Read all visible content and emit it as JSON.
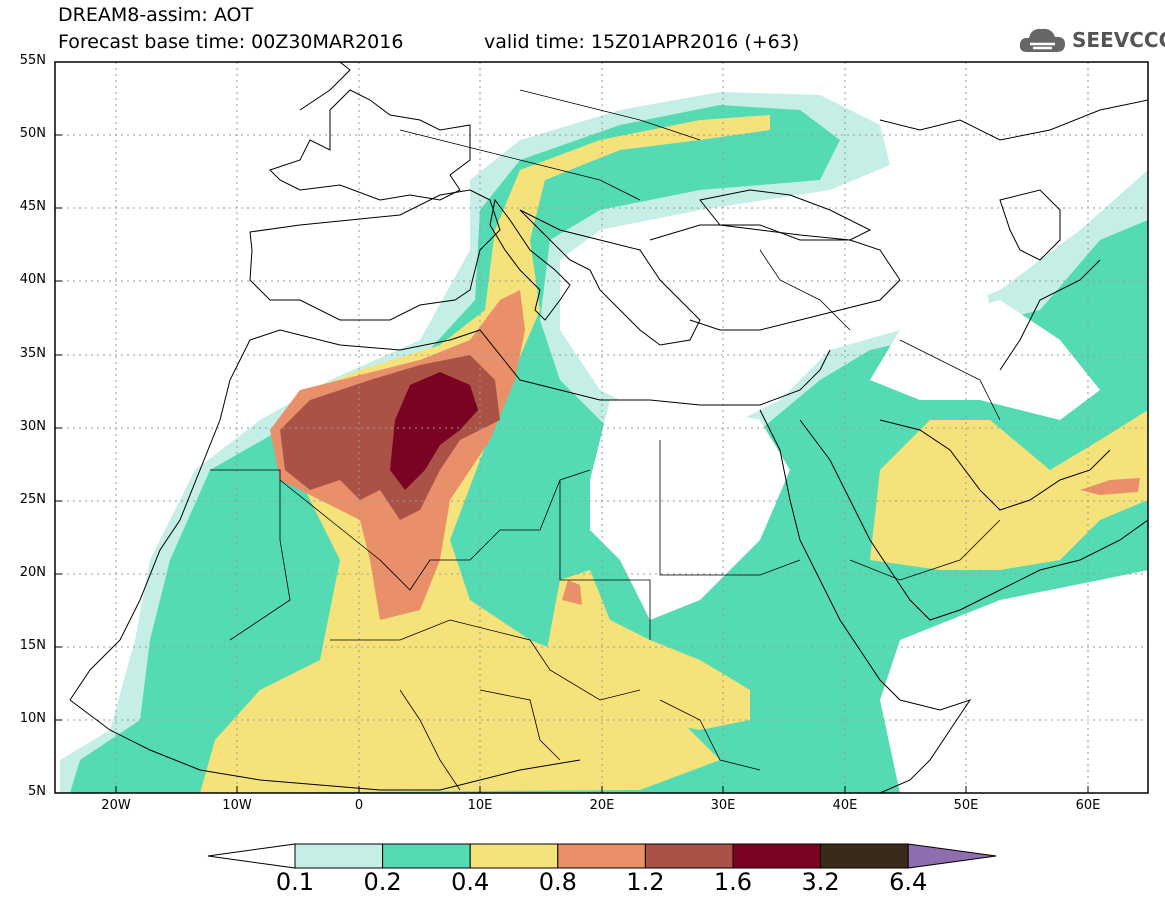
{
  "header": {
    "title": "DREAM8-assim: AOT",
    "base_time": "Forecast base time: 00Z30MAR2016",
    "valid_time": "valid time: 15Z01APR2016 (+63)"
  },
  "logo": {
    "text": "SEEVCCC",
    "icon": "cloud-icon"
  },
  "map": {
    "latitude_labels": [
      "55N",
      "50N",
      "45N",
      "40N",
      "35N",
      "30N",
      "25N",
      "20N",
      "15N",
      "10N",
      "5N"
    ],
    "longitude_labels": [
      "20W",
      "10W",
      "0",
      "10E",
      "20E",
      "30E",
      "40E",
      "50E",
      "60E"
    ],
    "extent": {
      "lon": [
        -25,
        65
      ],
      "lat": [
        5,
        55
      ]
    },
    "variable": "Aerosol optical thickness (dust)",
    "gridlines": true
  },
  "colorbar": {
    "levels": [
      "0.1",
      "0.2",
      "0.4",
      "0.8",
      "1.2",
      "1.6",
      "3.2",
      "6.4"
    ],
    "colors": [
      "#ffffff",
      "#c5efe6",
      "#55dbb3",
      "#f5e27b",
      "#e98f6a",
      "#ab5247",
      "#7a0323",
      "#3a2a19",
      "#8e6db0"
    ]
  }
}
